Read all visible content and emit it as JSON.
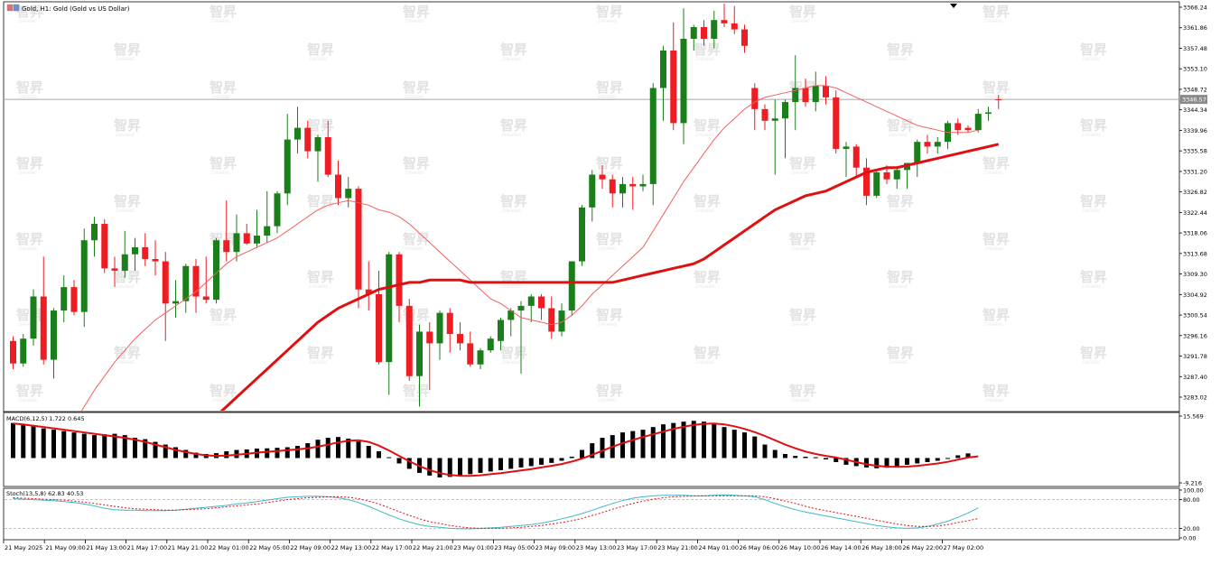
{
  "header": {
    "title": "Gold, H1:  Gold (Gold vs US Dollar)"
  },
  "watermark": {
    "text": "智昇",
    "subtext": "ZHISHENG"
  },
  "colors": {
    "up": "#1a7f1a",
    "down": "#ee1d23",
    "ma_slow": "#e01010",
    "ma_fast": "#f06060",
    "macd_hist": "#000000",
    "macd_signal": "#e01010",
    "stoch_main": "#40b8c8",
    "stoch_signal": "#e01010",
    "grid_line": "#999999"
  },
  "chart_data": [
    {
      "type": "candlestick",
      "symbol": "Gold",
      "timeframe": "H1",
      "ylim": [
        3280.0,
        3367.5
      ],
      "y_ticks": [
        3366.24,
        3361.86,
        3357.48,
        3353.1,
        3348.72,
        3344.34,
        3339.96,
        3335.58,
        3331.2,
        3326.82,
        3322.44,
        3318.06,
        3313.68,
        3309.3,
        3304.92,
        3300.54,
        3296.16,
        3291.78,
        3287.4,
        3283.02
      ],
      "current_price": 3346.57,
      "x_labels": [
        "21 May 2025",
        "21 May 09:00",
        "21 May 13:00",
        "21 May 17:00",
        "21 May 21:00",
        "22 May 01:00",
        "22 May 05:00",
        "22 May 09:00",
        "22 May 13:00",
        "22 May 17:00",
        "22 May 21:00",
        "23 May 01:00",
        "23 May 05:00",
        "23 May 09:00",
        "23 May 13:00",
        "23 May 17:00",
        "23 May 21:00",
        "24 May 01:00",
        "26 May 06:00",
        "26 May 10:00",
        "26 May 14:00",
        "26 May 18:00",
        "26 May 22:00",
        "27 May 02:00"
      ],
      "candles": [
        [
          3295.0,
          3296.0,
          3289.0,
          3290.2
        ],
        [
          3290.2,
          3296.5,
          3289.5,
          3295.5
        ],
        [
          3295.5,
          3306.0,
          3294.0,
          3304.5
        ],
        [
          3304.5,
          3313.0,
          3290.0,
          3291.0
        ],
        [
          3291.0,
          3302.0,
          3287.0,
          3301.5
        ],
        [
          3301.5,
          3309.0,
          3299.0,
          3306.5
        ],
        [
          3306.5,
          3308.0,
          3300.5,
          3301.2
        ],
        [
          3301.2,
          3319.0,
          3298.0,
          3316.5
        ],
        [
          3316.5,
          3321.5,
          3313.0,
          3320.0
        ],
        [
          3320.0,
          3321.0,
          3309.5,
          3310.5
        ],
        [
          3310.5,
          3313.0,
          3306.5,
          3310.0
        ],
        [
          3310.0,
          3318.5,
          3308.5,
          3313.5
        ],
        [
          3313.5,
          3317.0,
          3310.0,
          3315.0
        ],
        [
          3315.0,
          3318.0,
          3311.0,
          3312.5
        ],
        [
          3312.5,
          3316.5,
          3309.0,
          3312.0
        ],
        [
          3312.0,
          3314.0,
          3295.0,
          3303.0
        ],
        [
          3303.0,
          3308.0,
          3300.0,
          3303.5
        ],
        [
          3303.5,
          3311.5,
          3301.0,
          3311.0
        ],
        [
          3311.0,
          3312.5,
          3301.0,
          3304.5
        ],
        [
          3304.5,
          3313.0,
          3303.0,
          3303.8
        ],
        [
          3303.8,
          3317.0,
          3303.0,
          3316.5
        ],
        [
          3316.5,
          3325.0,
          3312.0,
          3314.0
        ],
        [
          3314.0,
          3322.0,
          3312.0,
          3318.0
        ],
        [
          3318.0,
          3320.0,
          3315.5,
          3315.8
        ],
        [
          3315.8,
          3323.0,
          3315.0,
          3317.5
        ],
        [
          3317.5,
          3327.0,
          3316.0,
          3319.5
        ],
        [
          3319.5,
          3327.0,
          3318.0,
          3326.5
        ],
        [
          3326.5,
          3343.5,
          3324.0,
          3338.0
        ],
        [
          3338.0,
          3345.0,
          3335.0,
          3340.5
        ],
        [
          3340.5,
          3342.0,
          3334.0,
          3335.5
        ],
        [
          3335.5,
          3339.0,
          3329.0,
          3338.5
        ],
        [
          3338.5,
          3342.0,
          3330.0,
          3330.5
        ],
        [
          3330.5,
          3333.5,
          3324.0,
          3325.5
        ],
        [
          3325.5,
          3330.0,
          3323.5,
          3327.5
        ],
        [
          3327.5,
          3328.0,
          3302.0,
          3306.0
        ],
        [
          3306.0,
          3312.0,
          3301.5,
          3305.0
        ],
        [
          3305.0,
          3310.0,
          3290.0,
          3290.5
        ],
        [
          3290.5,
          3314.0,
          3283.5,
          3313.5
        ],
        [
          3313.5,
          3314.0,
          3299.0,
          3302.5
        ],
        [
          3302.5,
          3304.0,
          3286.5,
          3287.5
        ],
        [
          3287.5,
          3298.5,
          3281.0,
          3297.0
        ],
        [
          3297.0,
          3299.0,
          3284.5,
          3294.5
        ],
        [
          3294.5,
          3301.5,
          3291.0,
          3301.0
        ],
        [
          3301.0,
          3302.0,
          3292.5,
          3296.5
        ],
        [
          3296.5,
          3299.0,
          3293.0,
          3294.5
        ],
        [
          3294.5,
          3297.0,
          3289.5,
          3290.0
        ],
        [
          3290.0,
          3293.5,
          3289.0,
          3293.0
        ],
        [
          3293.0,
          3296.0,
          3292.5,
          3295.5
        ],
        [
          3295.0,
          3300.0,
          3293.0,
          3299.5
        ],
        [
          3299.5,
          3302.0,
          3296.0,
          3301.5
        ],
        [
          3301.5,
          3303.5,
          3288.0,
          3302.5
        ],
        [
          3302.5,
          3305.0,
          3299.0,
          3304.5
        ],
        [
          3304.5,
          3305.0,
          3299.5,
          3302.0
        ],
        [
          3302.0,
          3304.5,
          3295.5,
          3297.0
        ],
        [
          3297.0,
          3303.0,
          3296.0,
          3301.5
        ],
        [
          3301.5,
          3312.0,
          3300.5,
          3312.0
        ],
        [
          3312.0,
          3324.0,
          3311.0,
          3323.5
        ],
        [
          3323.5,
          3331.5,
          3320.5,
          3330.5
        ],
        [
          3330.5,
          3332.5,
          3327.5,
          3329.5
        ],
        [
          3329.5,
          3330.5,
          3323.5,
          3326.5
        ],
        [
          3326.5,
          3330.0,
          3323.5,
          3328.5
        ],
        [
          3328.5,
          3330.0,
          3323.0,
          3328.0
        ],
        [
          3328.0,
          3330.5,
          3327.0,
          3328.5
        ],
        [
          3328.5,
          3350.0,
          3324.0,
          3349.0
        ],
        [
          3349.0,
          3358.0,
          3342.0,
          3357.0
        ],
        [
          3357.0,
          3363.0,
          3340.0,
          3341.5
        ],
        [
          3341.5,
          3366.0,
          3337.0,
          3359.5
        ],
        [
          3359.5,
          3362.5,
          3357.0,
          3362.0
        ],
        [
          3362.0,
          3363.5,
          3358.0,
          3359.5
        ],
        [
          3359.5,
          3365.5,
          3357.5,
          3363.5
        ],
        [
          3363.5,
          3367.0,
          3362.0,
          3362.8
        ],
        [
          3362.8,
          3366.5,
          3360.5,
          3361.5
        ],
        [
          3361.5,
          3362.5,
          3356.5,
          3358.0
        ],
        [
          3349.0,
          3350.0,
          3340.0,
          3344.5
        ],
        [
          3344.5,
          3345.5,
          3340.0,
          3342.0
        ],
        [
          3342.0,
          3346.5,
          3330.5,
          3342.5
        ],
        [
          3342.5,
          3346.5,
          3334.0,
          3346.0
        ],
        [
          3346.0,
          3356.0,
          3340.0,
          3349.0
        ],
        [
          3349.0,
          3351.0,
          3345.0,
          3346.0
        ],
        [
          3346.0,
          3352.5,
          3344.0,
          3349.5
        ],
        [
          3349.5,
          3351.5,
          3345.5,
          3347.0
        ],
        [
          3347.0,
          3348.5,
          3335.0,
          3336.0
        ],
        [
          3336.0,
          3337.5,
          3330.0,
          3336.5
        ],
        [
          3336.5,
          3337.0,
          3330.0,
          3332.0
        ],
        [
          3332.0,
          3334.0,
          3324.0,
          3326.0
        ],
        [
          3326.0,
          3331.5,
          3325.5,
          3331.0
        ],
        [
          3331.0,
          3332.5,
          3328.5,
          3329.5
        ],
        [
          3329.5,
          3332.0,
          3327.5,
          3331.5
        ],
        [
          3331.5,
          3333.0,
          3327.5,
          3333.0
        ],
        [
          3333.0,
          3338.0,
          3330.0,
          3337.5
        ],
        [
          3337.5,
          3339.0,
          3335.0,
          3336.5
        ],
        [
          3336.5,
          3338.5,
          3335.0,
          3337.5
        ],
        [
          3337.5,
          3342.0,
          3336.0,
          3341.5
        ],
        [
          3341.5,
          3342.5,
          3339.0,
          3340.0
        ],
        [
          3340.5,
          3341.0,
          3339.5,
          3340.0
        ],
        [
          3340.0,
          3344.5,
          3339.5,
          3343.5
        ],
        [
          3343.5,
          3345.0,
          3342.0,
          3343.8
        ],
        [
          3346.6,
          3347.5,
          3344.5,
          3346.5
        ]
      ],
      "ma_fast": [
        3258.0,
        3261.0,
        3264.5,
        3268.0,
        3271.5,
        3274.5,
        3277.5,
        3281.0,
        3284.5,
        3287.5,
        3290.5,
        3293.0,
        3295.5,
        3297.5,
        3299.5,
        3301.0,
        3302.5,
        3304.0,
        3305.5,
        3307.5,
        3309.5,
        3311.5,
        3313.0,
        3314.0,
        3315.0,
        3316.0,
        3317.0,
        3318.5,
        3320.0,
        3321.5,
        3323.0,
        3324.0,
        3324.5,
        3325.0,
        3324.5,
        3324.0,
        3323.0,
        3322.5,
        3321.5,
        3320.0,
        3318.0,
        3316.0,
        3314.0,
        3312.0,
        3310.0,
        3308.0,
        3306.0,
        3304.0,
        3303.0,
        3301.5,
        3300.0,
        3299.5,
        3299.0,
        3298.5,
        3299.0,
        3300.5,
        3302.5,
        3305.0,
        3307.0,
        3309.0,
        3311.0,
        3313.0,
        3315.0,
        3318.5,
        3322.0,
        3325.5,
        3329.0,
        3332.0,
        3335.0,
        3338.0,
        3340.5,
        3342.5,
        3344.5,
        3346.0,
        3347.0,
        3347.5,
        3348.0,
        3348.5,
        3349.0,
        3349.5,
        3349.5,
        3349.0,
        3348.0,
        3347.0,
        3346.0,
        3345.0,
        3344.0,
        3343.0,
        3342.0,
        3341.0,
        3340.5,
        3340.0,
        3339.5,
        3339.5,
        3339.5,
        3340.0
      ],
      "ma_slow": [
        3259.0,
        3260.5,
        3262.0,
        3263.5,
        3265.0,
        3266.5,
        3268.0,
        3269.5,
        3271.0,
        3273.0,
        3275.0,
        3277.0,
        3279.0,
        3281.0,
        3283.0,
        3285.0,
        3287.0,
        3289.0,
        3291.0,
        3293.0,
        3295.0,
        3297.0,
        3299.0,
        3300.5,
        3302.0,
        3303.0,
        3304.0,
        3305.0,
        3306.0,
        3306.5,
        3307.0,
        3307.5,
        3307.5,
        3308.0,
        3308.0,
        3308.0,
        3308.0,
        3307.5,
        3307.5,
        3307.5,
        3307.5,
        3307.5,
        3307.5,
        3307.5,
        3307.5,
        3307.5,
        3307.5,
        3307.5,
        3307.5,
        3307.5,
        3307.5,
        3307.5,
        3308.0,
        3308.5,
        3309.0,
        3309.5,
        3310.0,
        3310.5,
        3311.0,
        3311.5,
        3312.5,
        3314.0,
        3315.5,
        3317.0,
        3318.5,
        3320.0,
        3321.5,
        3323.0,
        3324.0,
        3325.0,
        3326.0,
        3326.5,
        3327.0,
        3328.0,
        3329.0,
        3330.0,
        3331.0,
        3331.5,
        3332.0,
        3332.0,
        3332.5,
        3333.0,
        3333.5,
        3334.0,
        3334.5,
        3335.0,
        3335.5,
        3336.0,
        3336.5,
        3337.0
      ]
    },
    {
      "type": "bar",
      "name": "MACD",
      "label": "MACD(6,12,5) 1.722 0.645",
      "ylim": [
        -9.216,
        15.569
      ],
      "y_ticks": [
        15.569,
        -9.216
      ],
      "histogram": [
        13.0,
        12.5,
        11.8,
        11.0,
        10.5,
        10.0,
        9.5,
        9.0,
        8.5,
        8.8,
        9.0,
        8.5,
        7.5,
        7.0,
        6.0,
        5.0,
        4.0,
        3.0,
        2.0,
        1.5,
        1.8,
        2.5,
        3.0,
        3.2,
        3.5,
        3.6,
        3.8,
        4.0,
        4.5,
        5.5,
        6.8,
        7.5,
        7.8,
        7.2,
        6.2,
        4.5,
        2.5,
        0.3,
        -2.0,
        -4.0,
        -5.5,
        -6.5,
        -7.2,
        -7.0,
        -6.5,
        -6.0,
        -5.5,
        -5.0,
        -4.5,
        -4.0,
        -3.5,
        -3.0,
        -2.5,
        -1.8,
        -1.0,
        0.5,
        3.0,
        5.5,
        7.5,
        8.5,
        9.5,
        10.0,
        10.5,
        11.5,
        12.5,
        13.0,
        13.5,
        13.8,
        13.5,
        12.5,
        11.5,
        10.5,
        9.5,
        8.0,
        5.0,
        3.0,
        1.5,
        0.8,
        0.5,
        0.3,
        -0.5,
        -1.5,
        -2.5,
        -3.0,
        -3.5,
        -3.8,
        -3.6,
        -3.0,
        -2.5,
        -2.0,
        -1.5,
        -1.0,
        0.0,
        1.0,
        1.722
      ],
      "signal": [
        12.8,
        12.5,
        12.0,
        11.5,
        11.0,
        10.5,
        10.0,
        9.5,
        9.0,
        8.5,
        8.0,
        7.5,
        6.8,
        6.0,
        5.0,
        4.0,
        3.0,
        2.2,
        1.5,
        1.0,
        0.8,
        0.9,
        1.2,
        1.6,
        2.0,
        2.3,
        2.6,
        2.9,
        3.2,
        3.6,
        4.2,
        5.0,
        5.8,
        6.4,
        6.6,
        6.0,
        4.6,
        2.8,
        0.8,
        -1.2,
        -3.0,
        -4.5,
        -5.6,
        -6.3,
        -6.6,
        -6.6,
        -6.4,
        -6.0,
        -5.6,
        -5.1,
        -4.6,
        -4.1,
        -3.5,
        -2.9,
        -2.2,
        -1.3,
        -0.2,
        1.2,
        2.7,
        4.2,
        5.5,
        6.7,
        7.8,
        8.8,
        9.8,
        10.8,
        11.6,
        12.3,
        12.7,
        12.8,
        12.5,
        11.8,
        10.8,
        9.6,
        8.2,
        6.6,
        5.0,
        3.6,
        2.4,
        1.5,
        0.8,
        0.2,
        -0.6,
        -1.5,
        -2.3,
        -2.9,
        -3.2,
        -3.3,
        -3.2,
        -2.9,
        -2.5,
        -2.0,
        -1.4,
        -0.6,
        0.2,
        0.645
      ]
    },
    {
      "type": "line",
      "name": "Stochastic",
      "label": "Stoch(13,5,8) 62.83 40.53",
      "ylim": [
        0,
        100
      ],
      "y_ticks": [
        100.0,
        80.0,
        20.0,
        0.0
      ],
      "series": [
        {
          "values": [
            82,
            81,
            80,
            79,
            78,
            76,
            74,
            71,
            67,
            62,
            59,
            58,
            58,
            57,
            57,
            57,
            58,
            60,
            62,
            64,
            66,
            68,
            71,
            73,
            76,
            79,
            82,
            85,
            86,
            87,
            87,
            86,
            84,
            80,
            74,
            66,
            57,
            48,
            40,
            33,
            28,
            24,
            22,
            20,
            19,
            19,
            20,
            21,
            22,
            24,
            26,
            28,
            31,
            35,
            40,
            45,
            51,
            58,
            65,
            72,
            78,
            83,
            86,
            88,
            89,
            89,
            89,
            88,
            88,
            89,
            90,
            89,
            88,
            86,
            80,
            72,
            65,
            59,
            54,
            50,
            46,
            42,
            38,
            34,
            30,
            26,
            23,
            21,
            20,
            21,
            24,
            29,
            35,
            43,
            52,
            62.83
          ]
        },
        {
          "values": [
            84,
            83,
            82,
            81,
            80,
            79,
            77,
            75,
            72,
            69,
            66,
            63,
            61,
            60,
            59,
            58,
            58,
            59,
            60,
            61,
            63,
            65,
            67,
            69,
            71,
            74,
            77,
            80,
            82,
            84,
            85,
            86,
            86,
            85,
            82,
            77,
            71,
            63,
            55,
            47,
            40,
            34,
            30,
            26,
            23,
            21,
            20,
            20,
            20,
            21,
            22,
            24,
            26,
            29,
            32,
            36,
            41,
            47,
            53,
            60,
            66,
            72,
            77,
            81,
            84,
            86,
            87,
            88,
            88,
            88,
            88,
            88,
            88,
            88,
            86,
            82,
            77,
            72,
            66,
            61,
            57,
            53,
            49,
            45,
            41,
            37,
            33,
            29,
            26,
            24,
            24,
            25,
            28,
            32,
            36,
            40.53
          ]
        }
      ]
    }
  ]
}
